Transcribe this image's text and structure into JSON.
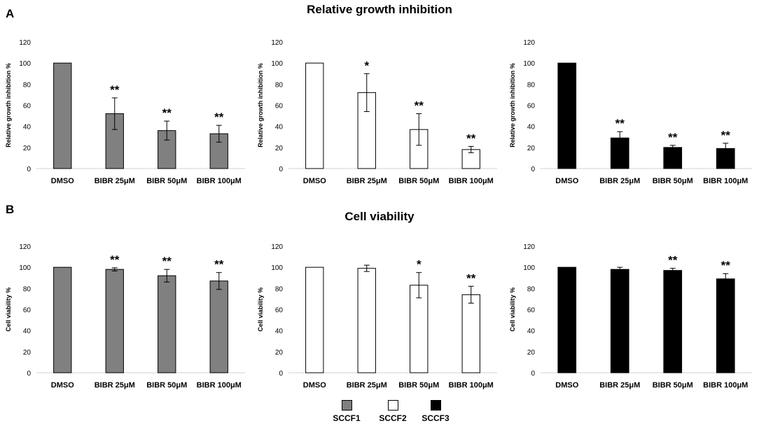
{
  "panels": {
    "A": {
      "letter": "A",
      "title": "Relative growth inhibition"
    },
    "B": {
      "letter": "B",
      "title": "Cell viability"
    }
  },
  "legend": [
    {
      "label": "SCCF1",
      "color": "#808080"
    },
    {
      "label": "SCCF2",
      "color": "#ffffff"
    },
    {
      "label": "SCCF3",
      "color": "#000000"
    }
  ],
  "chart_data": [
    {
      "type": "bar",
      "panel": "A",
      "series_name": "SCCF1",
      "color": "#808080",
      "categories": [
        "DMSO",
        "BIBR 25μM",
        "BIBR 50μM",
        "BIBR 100μM"
      ],
      "values": [
        100,
        52,
        36,
        33
      ],
      "errors": [
        0,
        15,
        9,
        8
      ],
      "annotations": [
        "",
        "**",
        "**",
        "**"
      ],
      "ylabel": "Relative growth inhibition %",
      "ylim": [
        0,
        120
      ],
      "yticks": [
        "0",
        "20",
        "40",
        "60",
        "80",
        "100",
        "120"
      ]
    },
    {
      "type": "bar",
      "panel": "A",
      "series_name": "SCCF2",
      "color": "#ffffff",
      "categories": [
        "DMSO",
        "BIBR 25μM",
        "BIBR 50μM",
        "BIBR 100μM"
      ],
      "values": [
        100,
        72,
        37,
        18
      ],
      "errors": [
        0,
        18,
        15,
        3
      ],
      "annotations": [
        "",
        "*",
        "**",
        "**"
      ],
      "ylabel": "Relative growth inhibition %",
      "ylim": [
        0,
        120
      ],
      "yticks": [
        "0",
        "20",
        "40",
        "60",
        "80",
        "100",
        "120"
      ]
    },
    {
      "type": "bar",
      "panel": "A",
      "series_name": "SCCF3",
      "color": "#000000",
      "categories": [
        "DMSO",
        "BIBR 25μM",
        "BIBR 50μM",
        "BIBR 100μM"
      ],
      "values": [
        100,
        29,
        20,
        19
      ],
      "errors": [
        0,
        6,
        2,
        5
      ],
      "annotations": [
        "",
        "**",
        "**",
        "**"
      ],
      "ylabel": "Relative growth inhibition %",
      "ylim": [
        0,
        120
      ],
      "yticks": [
        "0",
        "20",
        "40",
        "60",
        "80",
        "100",
        "120"
      ]
    },
    {
      "type": "bar",
      "panel": "B",
      "series_name": "SCCF1",
      "color": "#808080",
      "categories": [
        "DMSO",
        "BIBR 25μM",
        "BIBR 50μM",
        "BIBR 100μM"
      ],
      "values": [
        100,
        98,
        92,
        87
      ],
      "errors": [
        0,
        1.5,
        6,
        8
      ],
      "annotations": [
        "",
        "**",
        "**",
        "**"
      ],
      "ylabel": "Cell viability  %",
      "ylim": [
        0,
        120
      ],
      "yticks": [
        "0",
        "20",
        "40",
        "60",
        "80",
        "100",
        "120"
      ]
    },
    {
      "type": "bar",
      "panel": "B",
      "series_name": "SCCF2",
      "color": "#ffffff",
      "categories": [
        "DMSO",
        "BIBR 25μM",
        "BIBR 50μM",
        "BIBR 100μM"
      ],
      "values": [
        100,
        99,
        83,
        74
      ],
      "errors": [
        0,
        3,
        12,
        8
      ],
      "annotations": [
        "",
        "",
        "*",
        "**"
      ],
      "ylabel": "Cell viability  %",
      "ylim": [
        0,
        120
      ],
      "yticks": [
        "0",
        "20",
        "40",
        "60",
        "80",
        "100",
        "120"
      ]
    },
    {
      "type": "bar",
      "panel": "B",
      "series_name": "SCCF3",
      "color": "#000000",
      "categories": [
        "DMSO",
        "BIBR 25μM",
        "BIBR 50μM",
        "BIBR 100μM"
      ],
      "values": [
        100,
        98,
        97,
        89
      ],
      "errors": [
        0,
        2,
        2,
        5
      ],
      "annotations": [
        "",
        "",
        "**",
        "**"
      ],
      "ylabel": "Cell viability  %",
      "ylim": [
        0,
        120
      ],
      "yticks": [
        "0",
        "20",
        "40",
        "60",
        "80",
        "100",
        "120"
      ]
    }
  ]
}
